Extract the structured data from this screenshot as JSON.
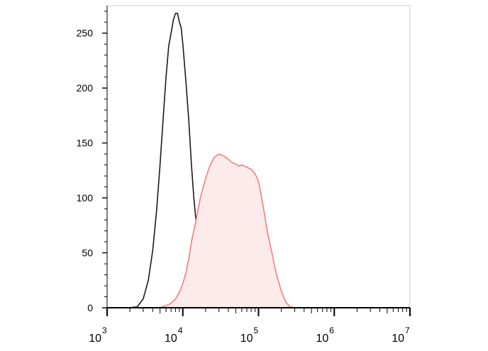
{
  "chart_data": {
    "type": "area",
    "title": "",
    "xlabel": "",
    "ylabel": "",
    "x_scale": "log",
    "xlim": [
      1000,
      10000000
    ],
    "ylim": [
      0,
      275
    ],
    "grid": false,
    "x_tick_labels": [
      {
        "value": 1000,
        "base": "10",
        "exp": "3"
      },
      {
        "value": 10000,
        "base": "10",
        "exp": "4"
      },
      {
        "value": 100000,
        "base": "10",
        "exp": "5"
      },
      {
        "value": 1000000,
        "base": "10",
        "exp": "6"
      },
      {
        "value": 10000000,
        "base": "10",
        "exp": "7"
      }
    ],
    "y_tick_labels": [
      {
        "value": 0,
        "label": "0"
      },
      {
        "value": 50,
        "label": "50"
      },
      {
        "value": 100,
        "label": "100"
      },
      {
        "value": 150,
        "label": "150"
      },
      {
        "value": 200,
        "label": "200"
      },
      {
        "value": 250,
        "label": "250"
      }
    ],
    "series": [
      {
        "color": "#1a1a1a",
        "fill": "none",
        "x": [
          1200,
          2000,
          2500,
          3000,
          3500,
          4000,
          4500,
          5000,
          5500,
          6000,
          6500,
          7000,
          7500,
          8000,
          8500,
          9000,
          9500,
          10000,
          11000,
          12000,
          13000,
          14000,
          15000,
          16000,
          17000,
          18000,
          20000,
          22000,
          25000,
          30000,
          35000,
          40000,
          50000,
          60000,
          80000,
          10000000
        ],
        "y": [
          0,
          0,
          1,
          8,
          25,
          52,
          88,
          130,
          172,
          210,
          238,
          250,
          262,
          268,
          268,
          260,
          255,
          240,
          205,
          170,
          130,
          100,
          78,
          60,
          48,
          38,
          25,
          18,
          10,
          6,
          4,
          3,
          2,
          1,
          0,
          0
        ]
      },
      {
        "color": "#f08080",
        "fill": "#fdeaea",
        "x": [
          1200,
          5000,
          6000,
          7000,
          8000,
          9000,
          10000,
          11000,
          12000,
          13000,
          15000,
          17000,
          20000,
          23000,
          26000,
          30000,
          35000,
          40000,
          45000,
          50000,
          55000,
          60000,
          70000,
          80000,
          90000,
          100000,
          110000,
          120000,
          130000,
          150000,
          170000,
          200000,
          230000,
          260000,
          300000,
          10000000
        ],
        "y": [
          0,
          0,
          2,
          4,
          8,
          14,
          22,
          32,
          45,
          60,
          80,
          100,
          118,
          130,
          137,
          140,
          138,
          135,
          132,
          131,
          129,
          130,
          128,
          126,
          122,
          115,
          100,
          85,
          70,
          50,
          32,
          15,
          5,
          1,
          0,
          0
        ]
      }
    ]
  }
}
